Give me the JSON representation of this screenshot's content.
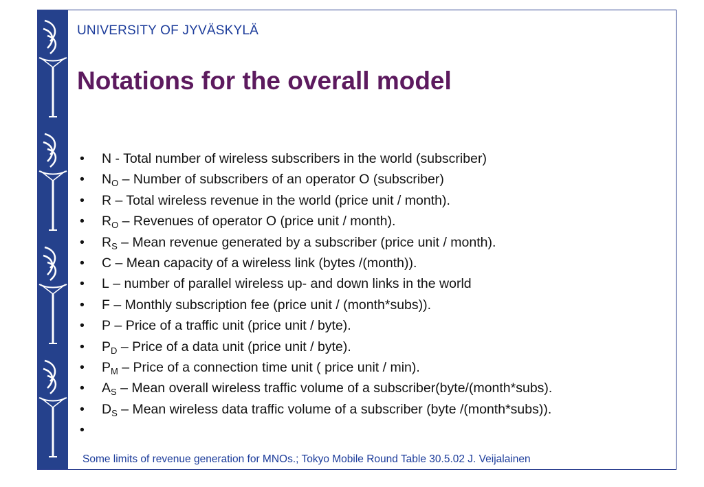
{
  "header": {
    "university": "UNIVERSITY OF JYVÄSKYLÄ",
    "title": "Notations for the overall model"
  },
  "bullets": [
    {
      "lead": "N",
      "sub": "",
      "text": " - Total number of wireless subscribers in the world (subscriber)"
    },
    {
      "lead": "N",
      "sub": "O",
      "text": " – Number of subscribers of an operator O (subscriber)"
    },
    {
      "lead": "R",
      "sub": "",
      "text": " – Total wireless revenue in the world (price unit / month)."
    },
    {
      "lead": "R",
      "sub": "O",
      "text": " – Revenues of operator O (price unit / month)."
    },
    {
      "lead": "R",
      "sub": "S",
      "text": " – Mean revenue generated by a subscriber (price unit / month)."
    },
    {
      "lead": "C",
      "sub": "",
      "text": " – Mean capacity of a wireless link (bytes /(month))."
    },
    {
      "lead": "L",
      "sub": "",
      "text": " – number of parallel wireless up- and down links  in the world"
    },
    {
      "lead": "F",
      "sub": "",
      "text": " – Monthly subscription fee (price unit / (month*subs))."
    },
    {
      "lead": "P",
      "sub": "",
      "text": " – Price of a traffic unit (price unit / byte)."
    },
    {
      "lead": "P",
      "sub": "D",
      "text": " – Price of a data unit (price unit / byte)."
    },
    {
      "lead": "P",
      "sub": "M",
      "text": " – Price of a connection time unit ( price unit / min)."
    },
    {
      "lead": "A",
      "sub": "S",
      "text": " – Mean overall wireless traffic volume of a subscriber(byte/(month*subs)."
    },
    {
      "lead": "D",
      "sub": "S",
      "text": " – Mean wireless data traffic volume of a subscriber (byte /(month*subs))."
    },
    {
      "lead": "",
      "sub": "",
      "text": ""
    }
  ],
  "bullet_glyph": "•",
  "footer": {
    "text": "Some limits of revenue generation for MNOs.; Tokyo Mobile Round Table 30.5.02 J. Veijalainen"
  },
  "colors": {
    "sidebar": "#25418c",
    "title": "#5c1a5e",
    "accent_text": "#1b3b9a"
  },
  "sidebar": {
    "logo_icon": "university-torch-logo-icon"
  }
}
